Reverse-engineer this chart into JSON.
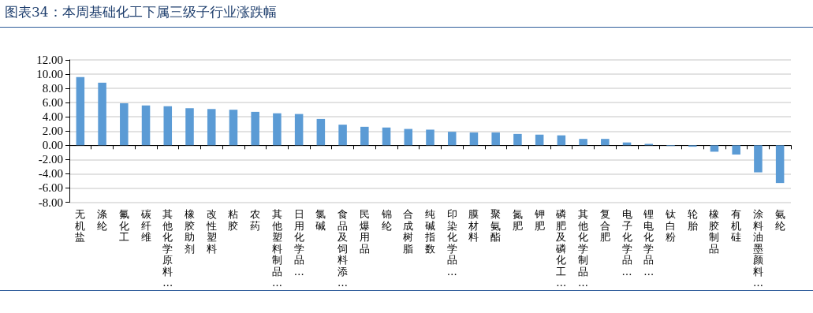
{
  "chart_data": {
    "type": "bar",
    "title": "图表34：本周基础化工下属三级子行业涨跌幅",
    "categories": [
      "无机盐",
      "涤纶",
      "氟化工",
      "碳纤维",
      "其他化学原料…",
      "橡胶助剂",
      "改性塑料",
      "粘胶",
      "农药",
      "其他塑料制品…",
      "日用化学品…",
      "氯碱",
      "食品及饲料添…",
      "民爆用品",
      "锦纶",
      "合成树脂",
      "纯碱指数",
      "印染化学品…",
      "膜材料",
      "聚氨酯",
      "氮肥",
      "钾肥",
      "磷肥及磷化工…",
      "其他化学制品…",
      "复合肥",
      "电子化学品…",
      "锂电化学品…",
      "钛白粉",
      "轮胎",
      "橡胶制品",
      "有机硅",
      "涂料油墨颜料…",
      "氨纶"
    ],
    "values": [
      9.6,
      8.8,
      5.9,
      5.6,
      5.5,
      5.2,
      5.1,
      5.0,
      4.7,
      4.5,
      4.4,
      3.7,
      2.9,
      2.6,
      2.5,
      2.3,
      2.2,
      1.9,
      1.8,
      1.8,
      1.6,
      1.5,
      1.4,
      0.9,
      0.9,
      0.4,
      0.2,
      -0.1,
      -0.2,
      -0.9,
      -1.3,
      -3.8,
      -5.3
    ],
    "color": "#5b9bd5",
    "ylim": [
      -8,
      12
    ],
    "yticks": [
      {
        "value": -8,
        "label": "-8.00"
      },
      {
        "value": -6,
        "label": "-6.00"
      },
      {
        "value": -4,
        "label": "-4.00"
      },
      {
        "value": -2,
        "label": "-2.00"
      },
      {
        "value": 0,
        "label": "0.00"
      },
      {
        "value": 2,
        "label": "2.00"
      },
      {
        "value": 4,
        "label": "4.00"
      },
      {
        "value": 6,
        "label": "6.00"
      },
      {
        "value": 8,
        "label": "8.00"
      },
      {
        "value": 10,
        "label": "10.00"
      },
      {
        "value": 12,
        "label": "12.00"
      }
    ],
    "grid": "y"
  }
}
